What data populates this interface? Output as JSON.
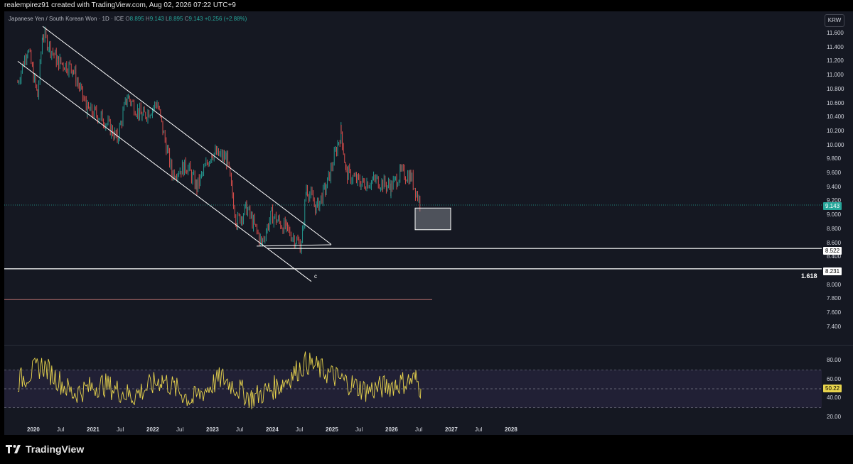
{
  "header": {
    "attribution": "realempirez91 created with TradingView.com, Aug 02, 2026 07:22 UTC+9"
  },
  "symbol": {
    "name": "Japanese Yen / South Korean Won · 1D · ICE",
    "o_label": "O",
    "o": "8.895",
    "h_label": "H",
    "h": "9.143",
    "l_label": "L",
    "l": "8.895",
    "c_label": "C",
    "c": "9.143",
    "change": "+0.256 (+2.88%)"
  },
  "currency_button": "KRW",
  "price_axis": [
    "11.600",
    "11.400",
    "11.200",
    "11.000",
    "10.800",
    "10.600",
    "10.400",
    "10.200",
    "10.000",
    "9.800",
    "9.600",
    "9.400",
    "9.200",
    "9.000",
    "8.800",
    "8.600",
    "8.400",
    "8.000",
    "7.800",
    "7.600",
    "7.400"
  ],
  "price_tags": {
    "current": "9.143",
    "level_1": "8.522",
    "level_2": "8.231"
  },
  "rsi_axis": [
    "80.00",
    "60.00",
    "40.00",
    "20.00"
  ],
  "rsi_tag": "50.22",
  "annotations": {
    "fib": "1.618",
    "wave": "c"
  },
  "time_axis": [
    {
      "label": "2020",
      "bold": true
    },
    {
      "label": "Jul",
      "bold": false
    },
    {
      "label": "2021",
      "bold": true
    },
    {
      "label": "Jul",
      "bold": false
    },
    {
      "label": "2022",
      "bold": true
    },
    {
      "label": "Jul",
      "bold": false
    },
    {
      "label": "2023",
      "bold": true
    },
    {
      "label": "Jul",
      "bold": false
    },
    {
      "label": "2024",
      "bold": true
    },
    {
      "label": "Jul",
      "bold": false
    },
    {
      "label": "2025",
      "bold": true
    },
    {
      "label": "Jul",
      "bold": false
    },
    {
      "label": "2026",
      "bold": true
    },
    {
      "label": "Jul",
      "bold": false
    },
    {
      "label": "2027",
      "bold": true
    },
    {
      "label": "Jul",
      "bold": false
    },
    {
      "label": "2028",
      "bold": true
    }
  ],
  "footer": {
    "brand": "TradingView"
  },
  "colors": {
    "background": "#151822",
    "up": "#26a69a",
    "down": "#ef5350",
    "rsi": "#e8d44d",
    "rsi_band": "#7e57c2",
    "line": "#ffffff"
  },
  "chart_data": {
    "type": "candlestick",
    "symbol": "JPYKRW",
    "interval": "1D",
    "ylim": [
      7.3,
      11.7
    ],
    "trend_points": [
      {
        "date": "2019-10",
        "close": 10.9
      },
      {
        "date": "2019-12",
        "close": 11.4
      },
      {
        "date": "2020-02",
        "close": 10.7
      },
      {
        "date": "2020-03",
        "close": 11.6
      },
      {
        "date": "2020-06",
        "close": 11.2
      },
      {
        "date": "2020-09",
        "close": 11.1
      },
      {
        "date": "2020-12",
        "close": 10.5
      },
      {
        "date": "2021-03",
        "close": 10.4
      },
      {
        "date": "2021-06",
        "close": 10.1
      },
      {
        "date": "2021-08",
        "close": 10.7
      },
      {
        "date": "2021-11",
        "close": 10.4
      },
      {
        "date": "2022-02",
        "close": 10.6
      },
      {
        "date": "2022-05",
        "close": 9.6
      },
      {
        "date": "2022-08",
        "close": 9.7
      },
      {
        "date": "2022-10",
        "close": 9.4
      },
      {
        "date": "2023-01",
        "close": 9.9
      },
      {
        "date": "2023-04",
        "close": 9.8
      },
      {
        "date": "2023-06",
        "close": 8.9
      },
      {
        "date": "2023-08",
        "close": 9.1
      },
      {
        "date": "2023-11",
        "close": 8.6
      },
      {
        "date": "2024-01",
        "close": 9.0
      },
      {
        "date": "2024-04",
        "close": 8.8
      },
      {
        "date": "2024-07",
        "close": 8.55
      },
      {
        "date": "2024-08",
        "close": 9.4
      },
      {
        "date": "2024-10",
        "close": 9.1
      },
      {
        "date": "2024-12",
        "close": 9.4
      },
      {
        "date": "2025-03",
        "close": 10.2
      },
      {
        "date": "2025-04",
        "close": 9.6
      },
      {
        "date": "2025-07",
        "close": 9.45
      },
      {
        "date": "2025-10",
        "close": 9.5
      },
      {
        "date": "2026-01",
        "close": 9.4
      },
      {
        "date": "2026-03",
        "close": 9.6
      },
      {
        "date": "2026-05",
        "close": 9.55
      },
      {
        "date": "2026-07",
        "close": 9.143
      }
    ],
    "rsi_trend": [
      {
        "date": "2019-10",
        "value": 58
      },
      {
        "date": "2020-03",
        "value": 75
      },
      {
        "date": "2020-09",
        "value": 45
      },
      {
        "date": "2021-03",
        "value": 55
      },
      {
        "date": "2021-09",
        "value": 42
      },
      {
        "date": "2022-03",
        "value": 60
      },
      {
        "date": "2022-09",
        "value": 38
      },
      {
        "date": "2023-03",
        "value": 62
      },
      {
        "date": "2023-09",
        "value": 40
      },
      {
        "date": "2024-03",
        "value": 55
      },
      {
        "date": "2024-08",
        "value": 78
      },
      {
        "date": "2025-02",
        "value": 62
      },
      {
        "date": "2025-08",
        "value": 48
      },
      {
        "date": "2026-02",
        "value": 55
      },
      {
        "date": "2026-06",
        "value": 60
      },
      {
        "date": "2026-07",
        "value": 50.22
      }
    ],
    "rsi_levels": [
      70,
      30
    ],
    "horizontal_levels": [
      8.522,
      8.231,
      7.79
    ],
    "channel_lines": [
      {
        "from": {
          "date": "2020-03",
          "price": 11.7
        },
        "to": {
          "date": "2025-01",
          "price": 8.58
        }
      },
      {
        "from": {
          "date": "2019-10",
          "price": 11.2
        },
        "to": {
          "date": "2024-09",
          "price": 8.05
        }
      },
      {
        "from": {
          "date": "2023-10",
          "price": 8.555
        },
        "to": {
          "date": "2025-01",
          "price": 8.575
        }
      }
    ],
    "box": {
      "from": "2026-06",
      "to": "2027-01",
      "top": 9.1,
      "bottom": 8.79
    }
  }
}
